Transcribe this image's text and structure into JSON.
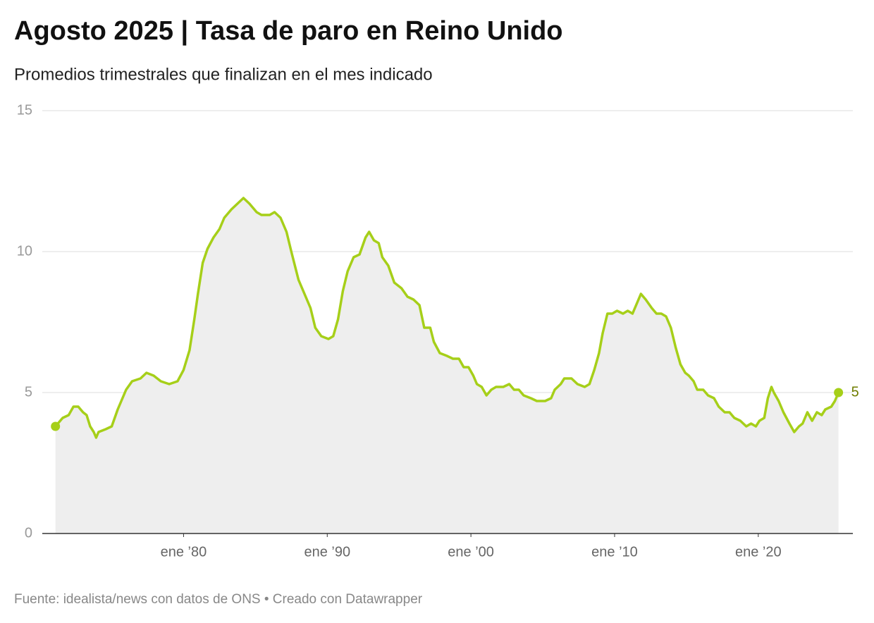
{
  "chart_data": {
    "type": "area",
    "title": "Agosto 2025 | Tasa de paro en Reino Unido",
    "subtitle": "Promedios trimestrales que finalizan en el mes indicado",
    "source": "Fuente: idealista/news con datos de ONS • Creado con Datawrapper",
    "color": "#a6cf19",
    "area_color": "#eeeeee",
    "end_label_color": "#6f7d00",
    "endpoint_markers": true,
    "end_label": true,
    "grid": true,
    "x": [
      "1971-02",
      "1971-08",
      "1972-01",
      "1972-05",
      "1972-09",
      "1973-01",
      "1973-04",
      "1973-07",
      "1973-10",
      "1973-12",
      "1974-02",
      "1974-08",
      "1975-01",
      "1975-06",
      "1975-09",
      "1976-01",
      "1976-06",
      "1977-01",
      "1977-06",
      "1977-12",
      "1978-06",
      "1979-01",
      "1979-08",
      "1980-01",
      "1980-06",
      "1980-10",
      "1981-01",
      "1981-05",
      "1981-09",
      "1982-02",
      "1982-07",
      "1982-11",
      "1983-05",
      "1983-10",
      "1984-03",
      "1984-08",
      "1985-02",
      "1985-06",
      "1986-01",
      "1986-05",
      "1986-10",
      "1987-03",
      "1987-07",
      "1988-01",
      "1988-06",
      "1988-11",
      "1989-03",
      "1989-08",
      "1990-02",
      "1990-06",
      "1990-10",
      "1991-02",
      "1991-06",
      "1991-11",
      "1992-04",
      "1992-09",
      "1992-12",
      "1993-04",
      "1993-08",
      "1993-11",
      "1994-04",
      "1994-09",
      "1995-03",
      "1995-08",
      "1996-01",
      "1996-06",
      "1996-10",
      "1997-03",
      "1997-06",
      "1997-11",
      "1998-05",
      "1998-10",
      "1999-03",
      "1999-07",
      "1999-11",
      "2000-03",
      "2000-06",
      "2000-10",
      "2001-02",
      "2001-06",
      "2001-10",
      "2002-04",
      "2002-09",
      "2003-01",
      "2003-05",
      "2003-09",
      "2004-03",
      "2004-08",
      "2005-03",
      "2005-08",
      "2005-11",
      "2006-04",
      "2006-07",
      "2007-01",
      "2007-06",
      "2007-12",
      "2008-04",
      "2008-08",
      "2008-12",
      "2009-03",
      "2009-07",
      "2009-11",
      "2010-03",
      "2010-08",
      "2010-12",
      "2011-04",
      "2011-08",
      "2011-11",
      "2012-03",
      "2012-08",
      "2012-12",
      "2013-04",
      "2013-08",
      "2013-12",
      "2014-04",
      "2014-08",
      "2014-12",
      "2015-03",
      "2015-07",
      "2015-10",
      "2016-03",
      "2016-07",
      "2016-12",
      "2017-04",
      "2017-09",
      "2018-01",
      "2018-05",
      "2018-10",
      "2019-03",
      "2019-07",
      "2019-11",
      "2020-02",
      "2020-06",
      "2020-09",
      "2020-12",
      "2021-02",
      "2021-06",
      "2021-10",
      "2022-03",
      "2022-07",
      "2022-11",
      "2023-02",
      "2023-06",
      "2023-10",
      "2024-02",
      "2024-06",
      "2024-09",
      "2025-02",
      "2025-05",
      "2025-08"
    ],
    "values": [
      3.8,
      4.1,
      4.2,
      4.5,
      4.5,
      4.3,
      4.2,
      3.8,
      3.6,
      3.4,
      3.6,
      3.7,
      3.8,
      4.4,
      4.7,
      5.1,
      5.4,
      5.5,
      5.7,
      5.6,
      5.4,
      5.3,
      5.4,
      5.8,
      6.5,
      7.6,
      8.5,
      9.6,
      10.1,
      10.5,
      10.8,
      11.2,
      11.5,
      11.7,
      11.9,
      11.7,
      11.4,
      11.3,
      11.3,
      11.4,
      11.2,
      10.7,
      10.0,
      9.0,
      8.5,
      8.0,
      7.3,
      7.0,
      6.9,
      7.0,
      7.6,
      8.6,
      9.3,
      9.8,
      9.9,
      10.5,
      10.7,
      10.4,
      10.3,
      9.8,
      9.5,
      8.9,
      8.7,
      8.4,
      8.3,
      8.1,
      7.3,
      7.3,
      6.8,
      6.4,
      6.3,
      6.2,
      6.2,
      5.9,
      5.9,
      5.6,
      5.3,
      5.2,
      4.9,
      5.1,
      5.2,
      5.2,
      5.3,
      5.1,
      5.1,
      4.9,
      4.8,
      4.7,
      4.7,
      4.8,
      5.1,
      5.3,
      5.5,
      5.5,
      5.3,
      5.2,
      5.3,
      5.8,
      6.4,
      7.1,
      7.8,
      7.8,
      7.9,
      7.8,
      7.9,
      7.8,
      8.2,
      8.5,
      8.3,
      8.0,
      7.8,
      7.8,
      7.7,
      7.3,
      6.6,
      6.0,
      5.7,
      5.6,
      5.4,
      5.1,
      5.1,
      4.9,
      4.8,
      4.5,
      4.3,
      4.3,
      4.1,
      4.0,
      3.8,
      3.9,
      3.8,
      4.0,
      4.1,
      4.8,
      5.2,
      5.0,
      4.7,
      4.3,
      3.9,
      3.6,
      3.8,
      3.9,
      4.3,
      4.0,
      4.3,
      4.2,
      4.4,
      4.5,
      4.7,
      5
    ],
    "xlim": [
      "1970-03",
      "2026-08"
    ],
    "xticks": [
      {
        "value": "1980-01",
        "label": "ene ’80"
      },
      {
        "value": "1990-01",
        "label": "ene ’90"
      },
      {
        "value": "2000-01",
        "label": "ene ’00"
      },
      {
        "value": "2010-01",
        "label": "ene ’10"
      },
      {
        "value": "2020-01",
        "label": "ene ’20"
      }
    ],
    "ylim": [
      0,
      15
    ],
    "yticks": [
      0,
      5,
      10,
      15
    ]
  }
}
